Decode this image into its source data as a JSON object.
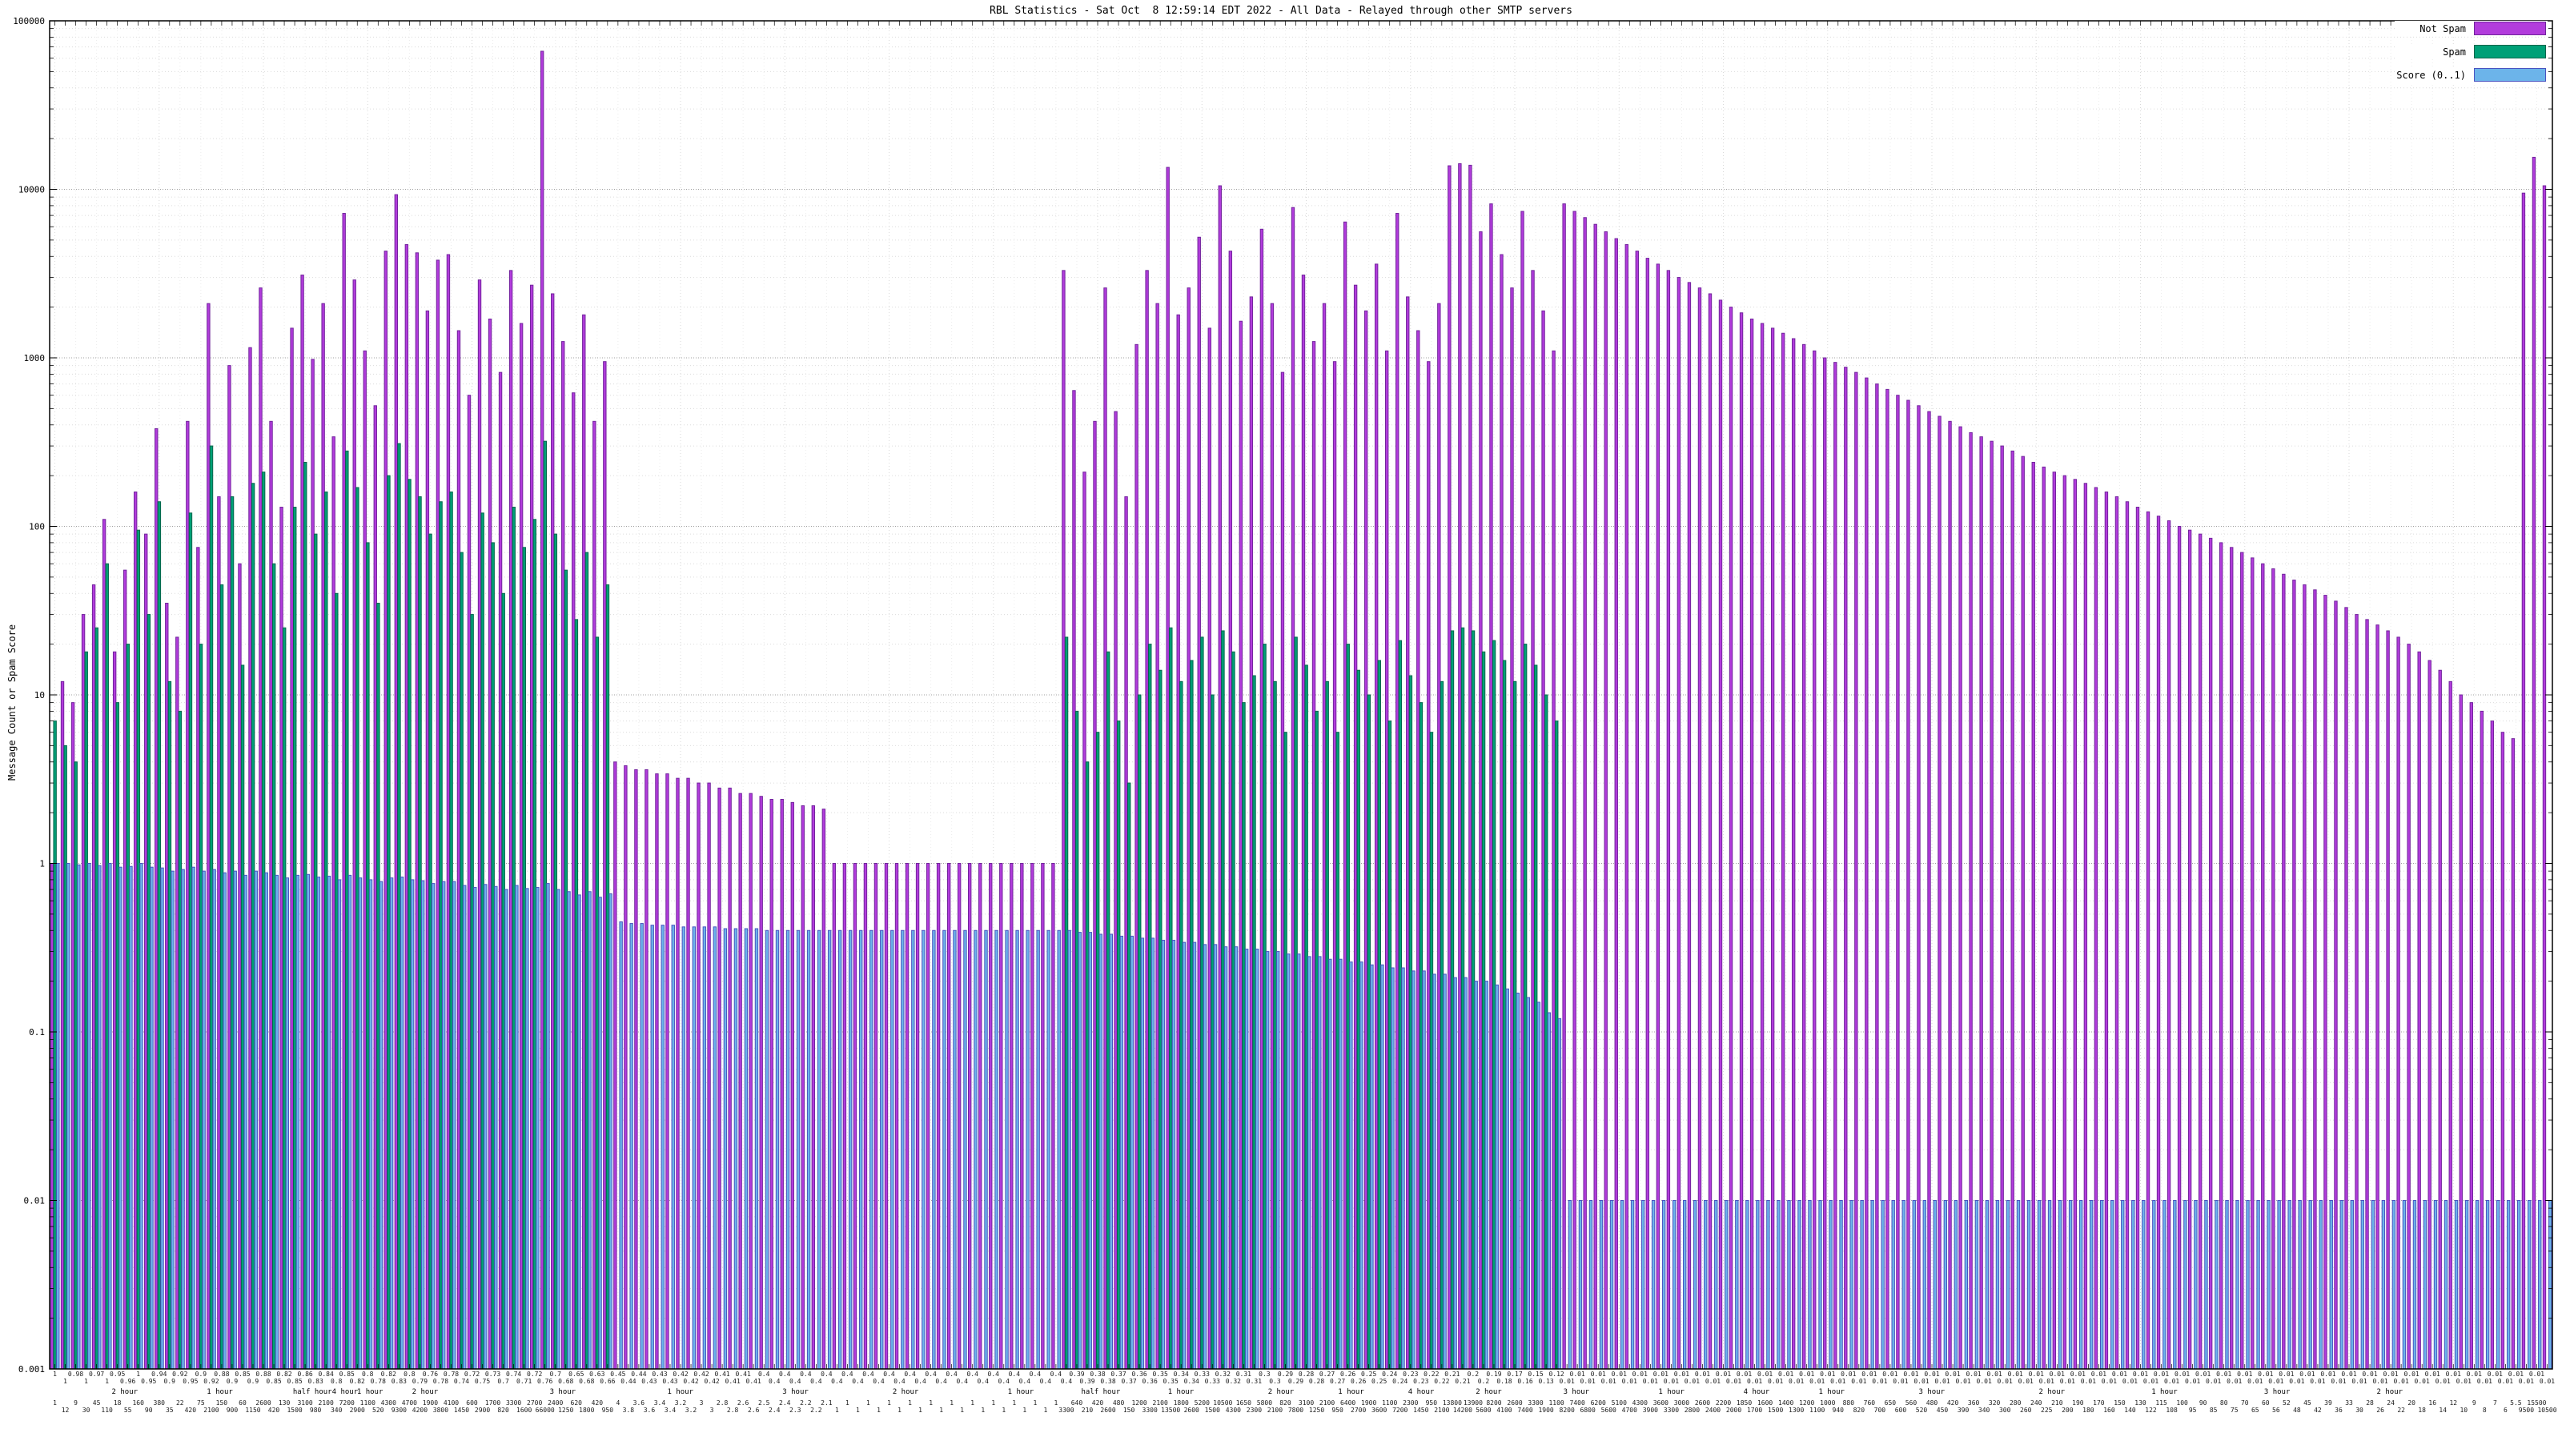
{
  "chart": {
    "title": "RBL Statistics - Sat Oct  8 12:59:14 EDT 2022 - All Data - Relayed through other SMTP servers",
    "ylabel": "Message Count or Spam Score",
    "legend": [
      {
        "label": "Not Spam",
        "color": "#b23cdc",
        "edge": "#71249c"
      },
      {
        "label": "Spam",
        "color": "#00a077",
        "edge": "#00654b"
      },
      {
        "label": "Score (0..1)",
        "color": "#6cb4ea",
        "edge": "#4a53c0"
      }
    ]
  },
  "chart_data": {
    "type": "bar",
    "scale": "log-y",
    "title": "RBL Statistics - Sat Oct  8 12:59:14 EDT 2022 - All Data - Relayed through other SMTP servers",
    "ylabel": "Message Count or Spam Score",
    "ylim": [
      0.001,
      100000
    ],
    "y_ticks": [
      "100000",
      "10000",
      "1000",
      "100",
      "10",
      "1",
      "0.1",
      "0.01",
      "0.001"
    ],
    "grid": true,
    "legend_position": "top-right",
    "series": [
      {
        "name": "Not Spam",
        "values": [
          1,
          12,
          9,
          30,
          45,
          110,
          18,
          55,
          160,
          90,
          380,
          35,
          22,
          420,
          75,
          2100,
          150,
          900,
          60,
          1150,
          2600,
          420,
          130,
          1500,
          3100,
          980,
          2100,
          340,
          7200,
          2900,
          1100,
          520,
          4300,
          9300,
          4700,
          4200,
          1900,
          3800,
          4100,
          1450,
          600,
          2900,
          1700,
          820,
          3300,
          1600,
          2700,
          66000,
          2400,
          1250,
          620,
          1800,
          420,
          950,
          4,
          3.8,
          3.6,
          3.6,
          3.4,
          3.4,
          3.2,
          3.2,
          3,
          3,
          2.8,
          2.8,
          2.6,
          2.6,
          2.5,
          2.4,
          2.4,
          2.3,
          2.2,
          2.2,
          2.1,
          1,
          1,
          1,
          1,
          1,
          1,
          1,
          1,
          1,
          1,
          1,
          1,
          1,
          1,
          1,
          1,
          1,
          1,
          1,
          1,
          1,
          1,
          3300,
          640,
          210,
          420,
          2600,
          480,
          150,
          1200,
          3300,
          2100,
          13500,
          1800,
          2600,
          5200,
          1500,
          10500,
          4300,
          1650,
          2300,
          5800,
          2100,
          820,
          7800,
          3100,
          1250,
          2100,
          950,
          6400,
          2700,
          1900,
          3600,
          1100,
          7200,
          2300,
          1450,
          950,
          2100,
          13800,
          14200,
          13900,
          5600,
          8200,
          4100,
          2600,
          7400,
          3300,
          1900,
          1100,
          8200,
          7400,
          6800,
          6200,
          5600,
          5100,
          4700,
          4300,
          3900,
          3600,
          3300,
          3000,
          2800,
          2600,
          2400,
          2200,
          2000,
          1850,
          1700,
          1600,
          1500,
          1400,
          1300,
          1200,
          1100,
          1000,
          940,
          880,
          820,
          760,
          700,
          650,
          600,
          560,
          520,
          480,
          450,
          420,
          390,
          360,
          340,
          320,
          300,
          280,
          260,
          240,
          225,
          210,
          200,
          190,
          180,
          170,
          160,
          150,
          140,
          130,
          122,
          115,
          108,
          100,
          95,
          90,
          85,
          80,
          75,
          70,
          65,
          60,
          56,
          52,
          48,
          45,
          42,
          39,
          36,
          33,
          30,
          28,
          26,
          24,
          22,
          20,
          18,
          16,
          14,
          12,
          10,
          9,
          8,
          7,
          6,
          5.5,
          9500,
          15500,
          10500
        ]
      },
      {
        "name": "Spam",
        "values": [
          7,
          5,
          4,
          18,
          25,
          60,
          9,
          20,
          95,
          30,
          140,
          12,
          8,
          120,
          20,
          300,
          45,
          150,
          15,
          180,
          210,
          60,
          25,
          130,
          240,
          90,
          160,
          40,
          280,
          170,
          80,
          35,
          200,
          310,
          190,
          150,
          90,
          140,
          160,
          70,
          30,
          120,
          80,
          40,
          130,
          75,
          110,
          320,
          90,
          55,
          28,
          70,
          22,
          45,
          0,
          0,
          0,
          0,
          0,
          0,
          0,
          0,
          0,
          0,
          0,
          0,
          0,
          0,
          0,
          0,
          0,
          0,
          0,
          0,
          0,
          0,
          0,
          0,
          0,
          0,
          0,
          0,
          0,
          0,
          0,
          0,
          0,
          0,
          0,
          0,
          0,
          0,
          0,
          0,
          0,
          0,
          0,
          22,
          8,
          4,
          6,
          18,
          7,
          3,
          10,
          20,
          14,
          25,
          12,
          16,
          22,
          10,
          24,
          18,
          9,
          13,
          20,
          12,
          6,
          22,
          15,
          8,
          12,
          6,
          20,
          14,
          10,
          16,
          7,
          21,
          13,
          9,
          6,
          12,
          24,
          25,
          24,
          18,
          21,
          16,
          12,
          20,
          15,
          10,
          7,
          0,
          0,
          0,
          0,
          0,
          0,
          0,
          0,
          0,
          0,
          0,
          0,
          0,
          0,
          0,
          0,
          0,
          0,
          0,
          0,
          0,
          0,
          0,
          0,
          0,
          0,
          0,
          0,
          0,
          0,
          0,
          0,
          0,
          0,
          0,
          0,
          0,
          0,
          0,
          0,
          0,
          0,
          0,
          0,
          0,
          0,
          0,
          0,
          0,
          0,
          0,
          0,
          0,
          0,
          0,
          0,
          0,
          0,
          0,
          0,
          0,
          0,
          0,
          0,
          0,
          0,
          0,
          0,
          0,
          0,
          0,
          0,
          0,
          0,
          0,
          0,
          0,
          0,
          0,
          0,
          0,
          0,
          0,
          0,
          0,
          0,
          0,
          0,
          0,
          0,
          0,
          0,
          0,
          0,
          0
        ]
      },
      {
        "name": "Score (0..1)",
        "values": [
          1,
          1,
          0.98,
          1,
          0.97,
          1,
          0.95,
          0.96,
          1,
          0.95,
          0.94,
          0.9,
          0.92,
          0.95,
          0.9,
          0.92,
          0.88,
          0.9,
          0.85,
          0.9,
          0.88,
          0.85,
          0.82,
          0.85,
          0.86,
          0.83,
          0.84,
          0.8,
          0.85,
          0.82,
          0.8,
          0.78,
          0.82,
          0.83,
          0.8,
          0.79,
          0.76,
          0.78,
          0.78,
          0.74,
          0.72,
          0.75,
          0.73,
          0.7,
          0.74,
          0.71,
          0.72,
          0.76,
          0.7,
          0.68,
          0.65,
          0.68,
          0.63,
          0.66,
          0.45,
          0.44,
          0.44,
          0.43,
          0.43,
          0.43,
          0.42,
          0.42,
          0.42,
          0.42,
          0.41,
          0.41,
          0.41,
          0.41,
          0.4,
          0.4,
          0.4,
          0.4,
          0.4,
          0.4,
          0.4,
          0.4,
          0.4,
          0.4,
          0.4,
          0.4,
          0.4,
          0.4,
          0.4,
          0.4,
          0.4,
          0.4,
          0.4,
          0.4,
          0.4,
          0.4,
          0.4,
          0.4,
          0.4,
          0.4,
          0.4,
          0.4,
          0.4,
          0.4,
          0.39,
          0.39,
          0.38,
          0.38,
          0.37,
          0.37,
          0.36,
          0.36,
          0.35,
          0.35,
          0.34,
          0.34,
          0.33,
          0.33,
          0.32,
          0.32,
          0.31,
          0.31,
          0.3,
          0.3,
          0.29,
          0.29,
          0.28,
          0.28,
          0.27,
          0.27,
          0.26,
          0.26,
          0.25,
          0.25,
          0.24,
          0.24,
          0.23,
          0.23,
          0.22,
          0.22,
          0.21,
          0.21,
          0.2,
          0.2,
          0.19,
          0.18,
          0.17,
          0.16,
          0.15,
          0.13,
          0.12,
          0.01,
          0.01,
          0.01,
          0.01,
          0.01,
          0.01,
          0.01,
          0.01,
          0.01,
          0.01,
          0.01,
          0.01,
          0.01,
          0.01,
          0.01,
          0.01,
          0.01,
          0.01,
          0.01,
          0.01,
          0.01,
          0.01,
          0.01,
          0.01,
          0.01,
          0.01,
          0.01,
          0.01,
          0.01,
          0.01,
          0.01,
          0.01,
          0.01,
          0.01,
          0.01,
          0.01,
          0.01,
          0.01,
          0.01,
          0.01,
          0.01,
          0.01,
          0.01,
          0.01,
          0.01,
          0.01,
          0.01,
          0.01,
          0.01,
          0.01,
          0.01,
          0.01,
          0.01,
          0.01,
          0.01,
          0.01,
          0.01,
          0.01,
          0.01,
          0.01,
          0.01,
          0.01,
          0.01,
          0.01,
          0.01,
          0.01,
          0.01,
          0.01,
          0.01,
          0.01,
          0.01,
          0.01,
          0.01,
          0.01,
          0.01,
          0.01,
          0.01,
          0.01,
          0.01,
          0.01,
          0.01,
          0.01,
          0.01,
          0.01,
          0.01,
          0.01,
          0.01,
          0.01,
          0.01,
          0.01,
          0.01,
          0.01,
          0.01,
          0.01,
          0.01
        ]
      }
    ],
    "x_group_labels": [
      {
        "label": "2 hour",
        "pos": 0.03
      },
      {
        "label": "1 hour",
        "pos": 0.068
      },
      {
        "label": "half hour",
        "pos": 0.105
      },
      {
        "label": "4 hour",
        "pos": 0.118
      },
      {
        "label": "1 hour",
        "pos": 0.128
      },
      {
        "label": "2 hour",
        "pos": 0.15
      },
      {
        "label": "3 hour",
        "pos": 0.205
      },
      {
        "label": "1 hour",
        "pos": 0.252
      },
      {
        "label": "3 hour",
        "pos": 0.298
      },
      {
        "label": "2 hour",
        "pos": 0.342
      },
      {
        "label": "1 hour",
        "pos": 0.388
      },
      {
        "label": "half hour",
        "pos": 0.42
      },
      {
        "label": "1 hour",
        "pos": 0.452
      },
      {
        "label": "2 hour",
        "pos": 0.492
      },
      {
        "label": "1 hour",
        "pos": 0.52
      },
      {
        "label": "4 hour",
        "pos": 0.548
      },
      {
        "label": "2 hour",
        "pos": 0.575
      },
      {
        "label": "3 hour",
        "pos": 0.61
      },
      {
        "label": "1 hour",
        "pos": 0.648
      },
      {
        "label": "4 hour",
        "pos": 0.682
      },
      {
        "label": "1 hour",
        "pos": 0.712
      },
      {
        "label": "3 hour",
        "pos": 0.752
      },
      {
        "label": "2 hour",
        "pos": 0.8
      },
      {
        "label": "1 hour",
        "pos": 0.845
      },
      {
        "label": "3 hour",
        "pos": 0.89
      },
      {
        "label": "2 hour",
        "pos": 0.935
      }
    ]
  }
}
